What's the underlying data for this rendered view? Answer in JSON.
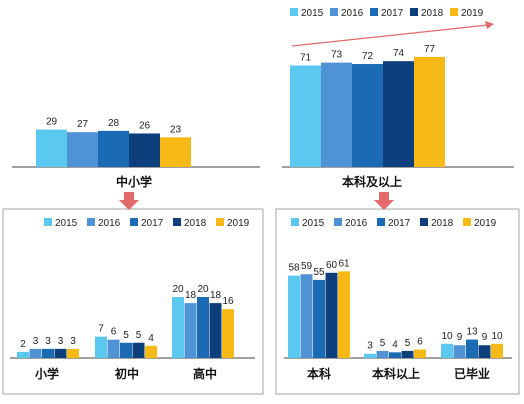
{
  "colors": {
    "2015": "#5BC8F0",
    "2016": "#4F93D6",
    "2017": "#1B6AB4",
    "2018": "#0E3F7D",
    "2019": "#F7B916",
    "arrow": "#E36A6A",
    "panel_border": "#A6A6A6",
    "axis": "#404040"
  },
  "chart_data": [
    {
      "type": "bar",
      "id": "top-left",
      "categories": [
        "中小学"
      ],
      "series": [
        {
          "name": "2015",
          "values": [
            29
          ]
        },
        {
          "name": "2016",
          "values": [
            27
          ]
        },
        {
          "name": "2017",
          "values": [
            28
          ]
        },
        {
          "name": "2018",
          "values": [
            26
          ]
        },
        {
          "name": "2019",
          "values": [
            23
          ]
        }
      ],
      "legend": null
    },
    {
      "type": "bar",
      "id": "top-right",
      "categories": [
        "本科及以上"
      ],
      "series": [
        {
          "name": "2015",
          "values": [
            71
          ]
        },
        {
          "name": "2016",
          "values": [
            73
          ]
        },
        {
          "name": "2017",
          "values": [
            72
          ]
        },
        {
          "name": "2018",
          "values": [
            74
          ]
        },
        {
          "name": "2019",
          "values": [
            77
          ]
        }
      ],
      "legend": "top",
      "trend_arrow": true
    },
    {
      "type": "bar",
      "id": "bottom-left",
      "categories": [
        "小学",
        "初中",
        "高中"
      ],
      "series": [
        {
          "name": "2015",
          "values": [
            2,
            7,
            20
          ]
        },
        {
          "name": "2016",
          "values": [
            3,
            6,
            18
          ]
        },
        {
          "name": "2017",
          "values": [
            3,
            5,
            20
          ]
        },
        {
          "name": "2018",
          "values": [
            3,
            5,
            18
          ]
        },
        {
          "name": "2019",
          "values": [
            3,
            4,
            16
          ]
        }
      ],
      "legend": "top"
    },
    {
      "type": "bar",
      "id": "bottom-right",
      "categories": [
        "本科",
        "本科以上",
        "已毕业"
      ],
      "series": [
        {
          "name": "2015",
          "values": [
            58,
            3,
            10
          ]
        },
        {
          "name": "2016",
          "values": [
            59,
            5,
            9
          ]
        },
        {
          "name": "2017",
          "values": [
            55,
            4,
            13
          ]
        },
        {
          "name": "2018",
          "values": [
            60,
            5,
            9
          ]
        },
        {
          "name": "2019",
          "values": [
            61,
            6,
            10
          ]
        }
      ],
      "legend": "top"
    }
  ]
}
